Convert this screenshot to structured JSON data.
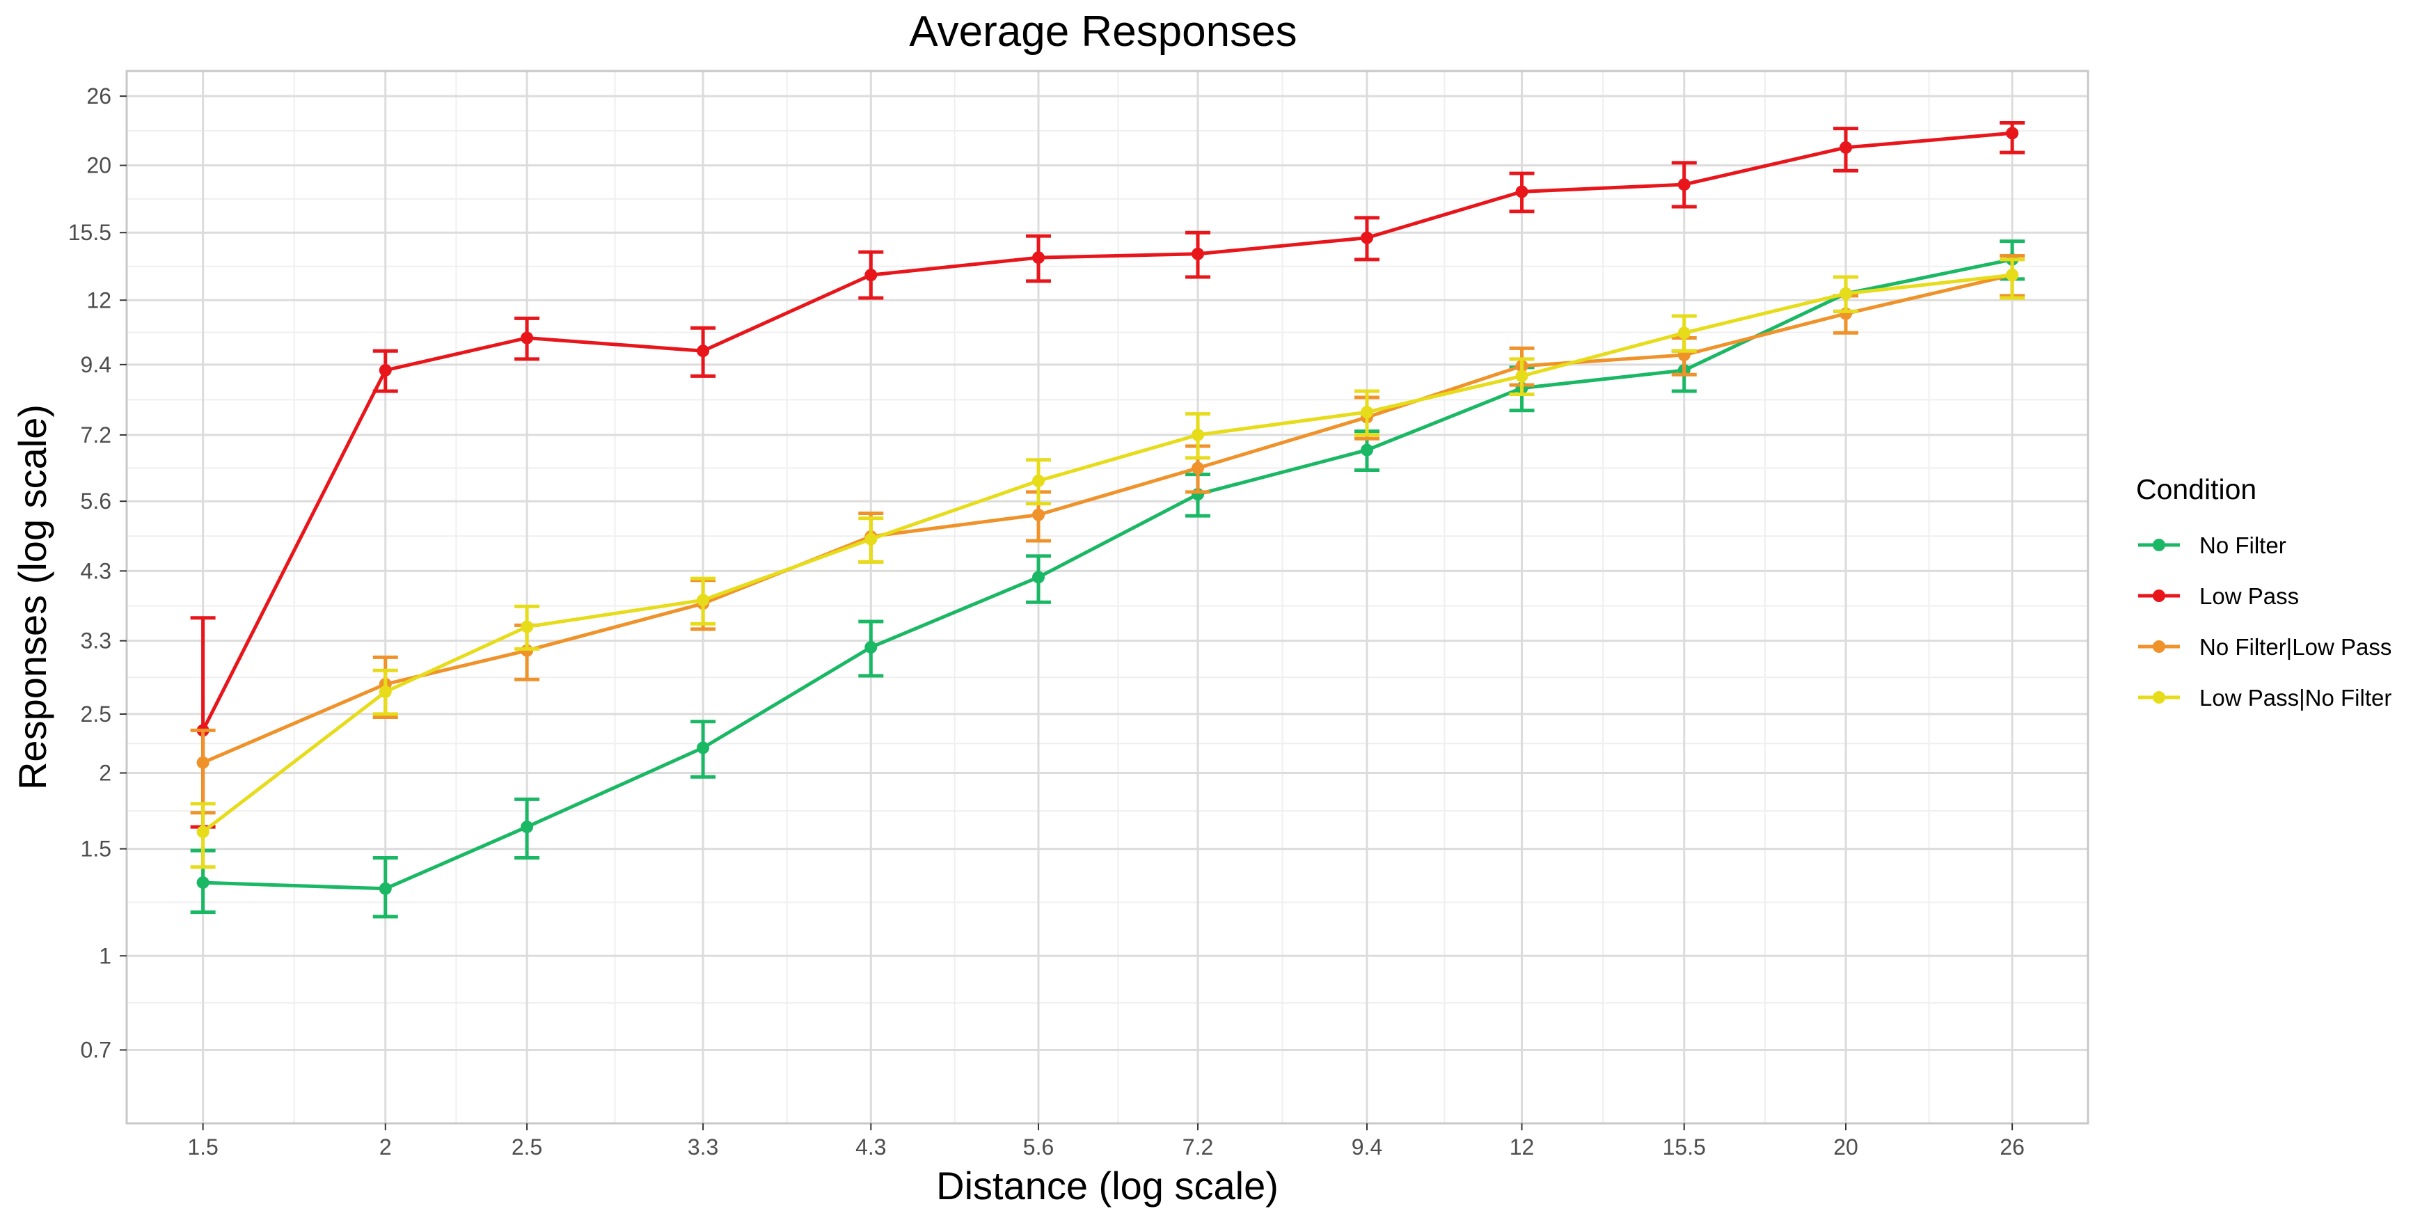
{
  "chart_data": {
    "type": "line",
    "title": "Average Responses",
    "xlabel": "Distance (log scale)",
    "ylabel": "Responses (log scale)",
    "x_scale": "log",
    "y_scale": "log",
    "x_ticks": [
      1.5,
      2,
      2.5,
      3.3,
      4.3,
      5.6,
      7.2,
      9.4,
      12,
      15.5,
      20,
      26
    ],
    "x_tick_labels": [
      "1.5",
      "2",
      "2.5",
      "3.3",
      "4.3",
      "5.6",
      "7.2",
      "9.4",
      "12",
      "15.5",
      "20",
      "26"
    ],
    "y_ticks": [
      0.7,
      1,
      1.5,
      2,
      2.5,
      3.3,
      4.3,
      5.6,
      7.2,
      9.4,
      12,
      15.5,
      20,
      26
    ],
    "y_tick_labels": [
      "0.7",
      "1",
      "1.5",
      "2",
      "2.5",
      "3.3",
      "4.3",
      "5.6",
      "7.2",
      "9.4",
      "12",
      "15.5",
      "20",
      "26"
    ],
    "xlim": [
      1.33,
      29.3
    ],
    "ylim": [
      0.53,
      28.6
    ],
    "grid": true,
    "legend": {
      "title": "Condition",
      "position": "right"
    },
    "x": [
      1.5,
      2,
      2.5,
      3.3,
      4.3,
      5.6,
      7.2,
      9.4,
      12,
      15.5,
      20,
      26
    ],
    "series": [
      {
        "name": "No Filter",
        "color": "#1ab864",
        "values": [
          1.32,
          1.29,
          1.63,
          2.2,
          3.22,
          4.2,
          5.75,
          6.8,
          8.6,
          9.2,
          12.3,
          14.0
        ],
        "lower": [
          1.18,
          1.16,
          1.45,
          1.97,
          2.89,
          3.82,
          5.3,
          6.3,
          7.9,
          8.5,
          11.5,
          13.0
        ],
        "upper": [
          1.49,
          1.45,
          1.81,
          2.43,
          3.55,
          4.55,
          6.2,
          7.3,
          9.3,
          9.9,
          13.1,
          15.0
        ]
      },
      {
        "name": "Low Pass",
        "color": "#e8161b",
        "values": [
          2.35,
          9.2,
          10.4,
          9.9,
          13.2,
          14.1,
          14.3,
          15.2,
          18.1,
          18.6,
          21.4,
          22.6
        ],
        "lower": [
          1.63,
          8.5,
          9.6,
          9.0,
          12.1,
          12.9,
          13.1,
          14.0,
          16.8,
          17.1,
          19.6,
          21.0
        ],
        "upper": [
          3.6,
          9.9,
          11.2,
          10.8,
          14.4,
          15.3,
          15.5,
          16.4,
          19.4,
          20.2,
          23.0,
          23.5
        ]
      },
      {
        "name": "No Filter|Low Pass",
        "color": "#f0922a",
        "values": [
          2.08,
          2.8,
          3.18,
          3.8,
          4.9,
          5.32,
          6.35,
          7.7,
          9.35,
          9.75,
          11.4,
          13.2
        ],
        "lower": [
          1.72,
          2.47,
          2.85,
          3.45,
          4.45,
          4.82,
          5.8,
          7.1,
          8.7,
          9.05,
          10.6,
          12.2
        ],
        "upper": [
          2.35,
          3.1,
          3.5,
          4.15,
          5.35,
          5.8,
          6.9,
          8.3,
          10.0,
          10.4,
          12.2,
          14.2
        ]
      },
      {
        "name": "Low Pass|No Filter",
        "color": "#e6dc1a",
        "values": [
          1.6,
          2.72,
          3.48,
          3.85,
          4.85,
          6.05,
          7.2,
          7.85,
          9.0,
          10.6,
          12.3,
          13.2
        ],
        "lower": [
          1.4,
          2.5,
          3.2,
          3.52,
          4.45,
          5.55,
          6.6,
          7.2,
          8.4,
          9.9,
          11.5,
          12.1
        ],
        "upper": [
          1.78,
          2.95,
          3.76,
          4.18,
          5.25,
          6.55,
          7.8,
          8.5,
          9.6,
          11.3,
          13.1,
          14.0
        ]
      }
    ]
  }
}
